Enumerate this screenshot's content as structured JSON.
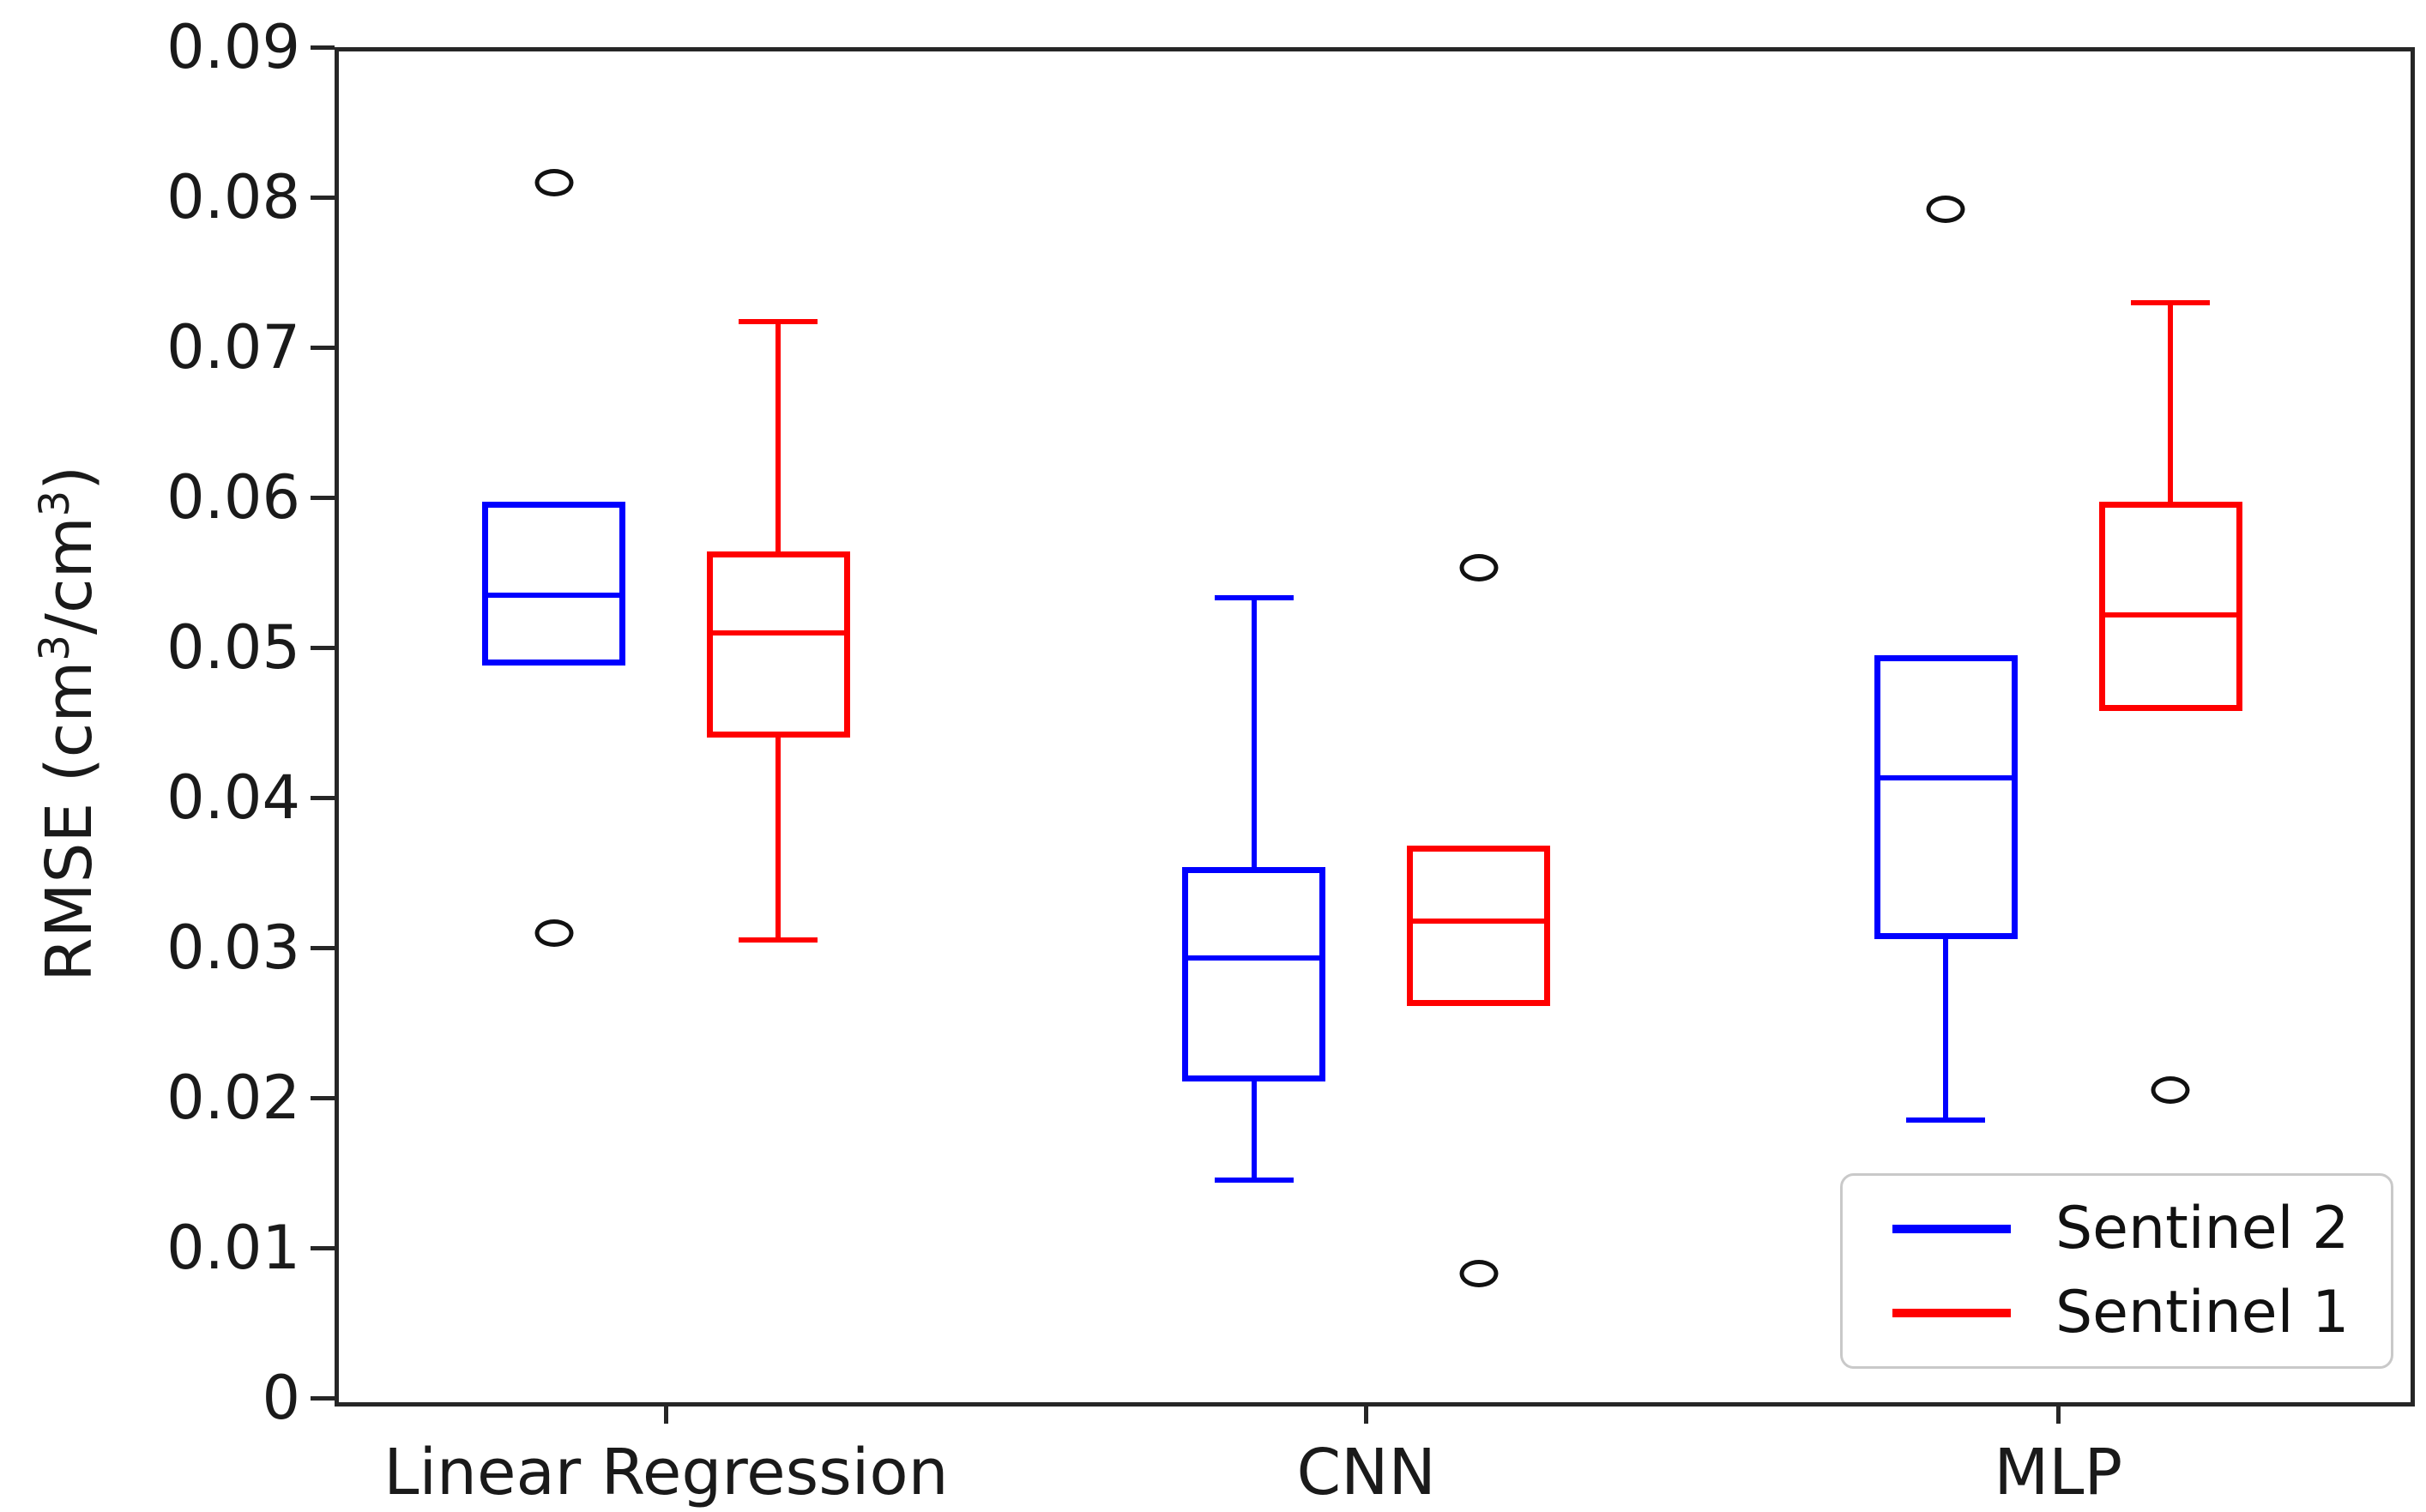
{
  "chart_data": {
    "type": "box",
    "title": "",
    "xlabel": "",
    "ylabel": "RMSE (cm³/cm³)",
    "ylim": [
      0,
      0.09
    ],
    "yticks": [
      0,
      0.01,
      0.02,
      0.03,
      0.04,
      0.05,
      0.06,
      0.07,
      0.08,
      0.09
    ],
    "ytick_labels": [
      "0",
      "0.01",
      "0.02",
      "0.03",
      "0.04",
      "0.05",
      "0.06",
      "0.07",
      "0.08",
      "0.09"
    ],
    "categories": [
      "Linear Regression",
      "CNN",
      "MLP"
    ],
    "grid": false,
    "legend": {
      "position": "lower right",
      "entries": [
        {
          "label": "Sentinel 2",
          "color": "#0000ff"
        },
        {
          "label": "Sentinel 1",
          "color": "#ff0000"
        }
      ]
    },
    "series": [
      {
        "name": "Sentinel 2",
        "color": "#0000ff",
        "boxes": [
          {
            "category": "Linear Regression",
            "whislo": 0.049,
            "q1": 0.049,
            "med": 0.0535,
            "q3": 0.0595,
            "whishi": 0.0595,
            "fliers": [
              0.081,
              0.031
            ]
          },
          {
            "category": "CNN",
            "whislo": 0.0145,
            "q1": 0.0213,
            "med": 0.0293,
            "q3": 0.0352,
            "whishi": 0.0533,
            "fliers": []
          },
          {
            "category": "MLP",
            "whislo": 0.0185,
            "q1": 0.0308,
            "med": 0.0413,
            "q3": 0.0493,
            "whishi": 0.0493,
            "fliers": [
              0.0792
            ]
          }
        ]
      },
      {
        "name": "Sentinel 1",
        "color": "#ff0000",
        "boxes": [
          {
            "category": "Linear Regression",
            "whislo": 0.0305,
            "q1": 0.0442,
            "med": 0.051,
            "q3": 0.0562,
            "whishi": 0.0717,
            "fliers": []
          },
          {
            "category": "CNN",
            "whislo": 0.0263,
            "q1": 0.0263,
            "med": 0.0318,
            "q3": 0.0366,
            "whishi": 0.0366,
            "fliers": [
              0.0553,
              0.0083
            ]
          },
          {
            "category": "MLP",
            "whislo": 0.046,
            "q1": 0.046,
            "med": 0.0522,
            "q3": 0.0595,
            "whishi": 0.073,
            "fliers": [
              0.0205
            ]
          }
        ]
      }
    ]
  }
}
